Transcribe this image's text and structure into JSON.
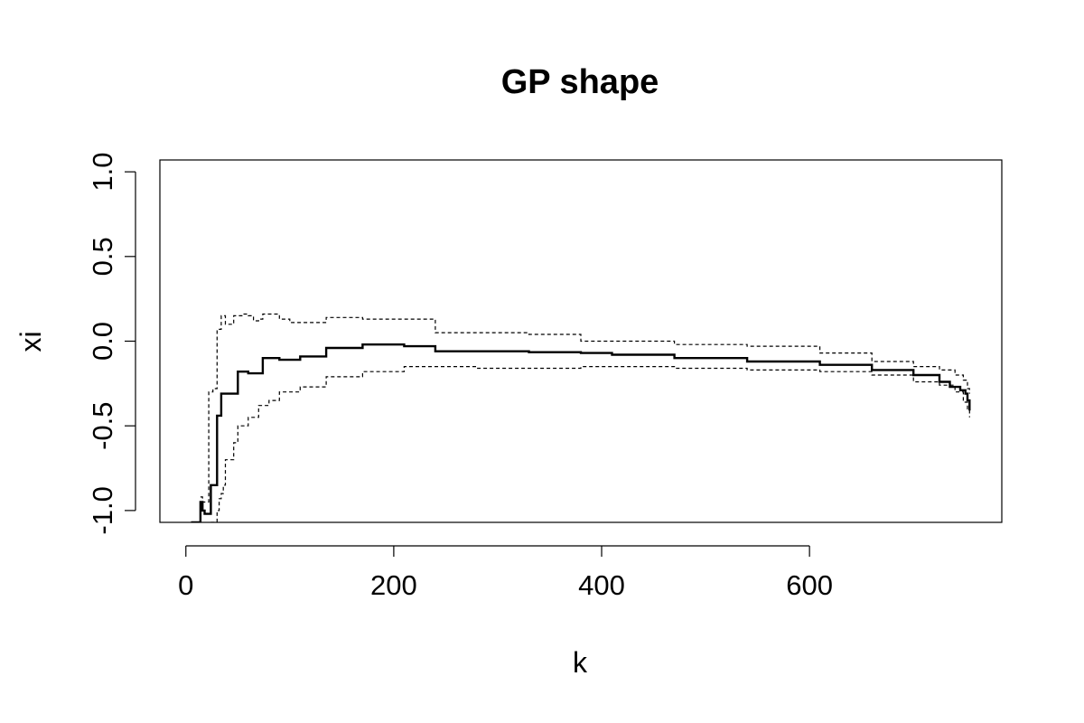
{
  "chart_data": {
    "type": "line",
    "title": "GP shape",
    "xlabel": "k",
    "ylabel": "xi",
    "xlim": [
      -25,
      785
    ],
    "ylim": [
      -1.07,
      1.07
    ],
    "x_ticks": [
      0,
      200,
      400,
      600
    ],
    "x_tick_labels": [
      "0",
      "200",
      "400",
      "600"
    ],
    "y_ticks": [
      -1.0,
      -0.5,
      0.0,
      0.5,
      1.0
    ],
    "y_tick_labels": [
      "-1.0",
      "-0.5",
      "0.0",
      "0.5",
      "1.0"
    ],
    "grid": false,
    "legend": "none",
    "series": [
      {
        "style": "solid",
        "color": "#000000",
        "x": [
          5,
          8,
          10,
          14,
          16,
          18,
          20,
          22,
          24,
          26,
          28,
          30,
          32,
          34,
          36,
          38,
          42,
          46,
          50,
          55,
          60,
          65,
          70,
          74,
          80,
          90,
          100,
          110,
          120,
          135,
          150,
          170,
          190,
          210,
          240,
          280,
          330,
          380,
          410,
          470,
          540,
          610,
          660,
          700,
          725,
          735,
          745,
          750,
          752,
          754
        ],
        "y": [
          -1.07,
          -1.07,
          -1.07,
          -0.95,
          -1.0,
          -1.02,
          -1.02,
          -1.02,
          -0.85,
          -0.85,
          -0.85,
          -0.44,
          -0.44,
          -0.31,
          -0.31,
          -0.31,
          -0.31,
          -0.31,
          -0.18,
          -0.18,
          -0.19,
          -0.19,
          -0.19,
          -0.1,
          -0.1,
          -0.11,
          -0.11,
          -0.09,
          -0.09,
          -0.04,
          -0.04,
          -0.02,
          -0.02,
          -0.03,
          -0.06,
          -0.06,
          -0.065,
          -0.07,
          -0.08,
          -0.1,
          -0.12,
          -0.14,
          -0.17,
          -0.2,
          -0.24,
          -0.27,
          -0.29,
          -0.31,
          -0.35,
          -0.41
        ]
      },
      {
        "style": "dashed",
        "color": "#000000",
        "x": [
          14,
          16,
          18,
          22,
          24,
          26,
          28,
          30,
          32,
          34,
          36,
          38,
          42,
          46,
          50,
          55,
          60,
          65,
          70,
          74,
          80,
          90,
          100,
          120,
          135,
          150,
          170,
          190,
          210,
          240,
          280,
          330,
          380,
          410,
          470,
          540,
          610,
          660,
          700,
          725,
          740,
          748,
          752,
          754
        ],
        "y": [
          -0.92,
          -0.95,
          -0.95,
          -0.3,
          -0.3,
          -0.28,
          -0.28,
          0.07,
          0.07,
          0.15,
          0.15,
          0.1,
          0.1,
          0.15,
          0.15,
          0.16,
          0.15,
          0.12,
          0.13,
          0.16,
          0.16,
          0.13,
          0.11,
          0.11,
          0.14,
          0.14,
          0.13,
          0.13,
          0.13,
          0.05,
          0.05,
          0.04,
          0.0,
          0.0,
          -0.02,
          -0.03,
          -0.07,
          -0.12,
          -0.15,
          -0.17,
          -0.2,
          -0.23,
          -0.28,
          -0.31
        ]
      },
      {
        "style": "dashed",
        "color": "#000000",
        "x": [
          24,
          26,
          28,
          30,
          32,
          34,
          36,
          38,
          42,
          46,
          50,
          55,
          60,
          65,
          70,
          74,
          80,
          90,
          100,
          110,
          120,
          135,
          150,
          170,
          190,
          210,
          240,
          280,
          330,
          380,
          410,
          470,
          540,
          610,
          660,
          700,
          725,
          740,
          748,
          752,
          754
        ],
        "y": [
          -1.07,
          -1.07,
          -1.07,
          -1.0,
          -0.93,
          -0.9,
          -0.85,
          -0.7,
          -0.7,
          -0.6,
          -0.5,
          -0.5,
          -0.45,
          -0.45,
          -0.38,
          -0.38,
          -0.35,
          -0.3,
          -0.3,
          -0.27,
          -0.27,
          -0.21,
          -0.21,
          -0.18,
          -0.18,
          -0.15,
          -0.15,
          -0.16,
          -0.16,
          -0.15,
          -0.15,
          -0.16,
          -0.17,
          -0.18,
          -0.2,
          -0.24,
          -0.26,
          -0.3,
          -0.36,
          -0.4,
          -0.45
        ]
      }
    ]
  }
}
